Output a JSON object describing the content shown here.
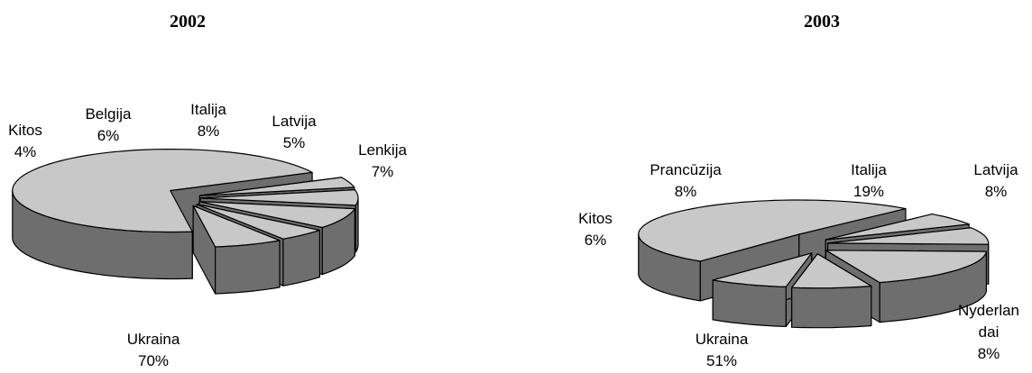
{
  "chart_data": [
    {
      "type": "pie",
      "style": "3d-exploded",
      "title": "2002",
      "slices": [
        {
          "label": "Ukraina",
          "value": 70,
          "value_text": "70%"
        },
        {
          "label": "Kitos",
          "value": 4,
          "value_text": "4%"
        },
        {
          "label": "Belgija",
          "value": 6,
          "value_text": "6%"
        },
        {
          "label": "Italija",
          "value": 8,
          "value_text": "8%"
        },
        {
          "label": "Latvija",
          "value": 5,
          "value_text": "5%"
        },
        {
          "label": "Lenkija",
          "value": 7,
          "value_text": "7%"
        }
      ],
      "colors": {
        "top": "#c8c8c8",
        "side": "#6e6e6e",
        "stroke": "#000000"
      },
      "legend": "none"
    },
    {
      "type": "pie",
      "style": "3d-exploded",
      "title": "2003",
      "slices": [
        {
          "label": "Ukraina",
          "value": 51,
          "value_text": "51%"
        },
        {
          "label": "Kitos",
          "value": 6,
          "value_text": "6%"
        },
        {
          "label": "Prancūzija",
          "value": 8,
          "value_text": "8%"
        },
        {
          "label": "Italija",
          "value": 19,
          "value_text": "19%"
        },
        {
          "label": "Latvija",
          "value": 8,
          "value_text": "8%"
        },
        {
          "label": "Nyderlandai",
          "label_lines": [
            "Nyderlan",
            "dai"
          ],
          "value": 8,
          "value_text": "8%"
        }
      ],
      "colors": {
        "top": "#c8c8c8",
        "side": "#6e6e6e",
        "stroke": "#000000"
      },
      "legend": "none"
    }
  ]
}
